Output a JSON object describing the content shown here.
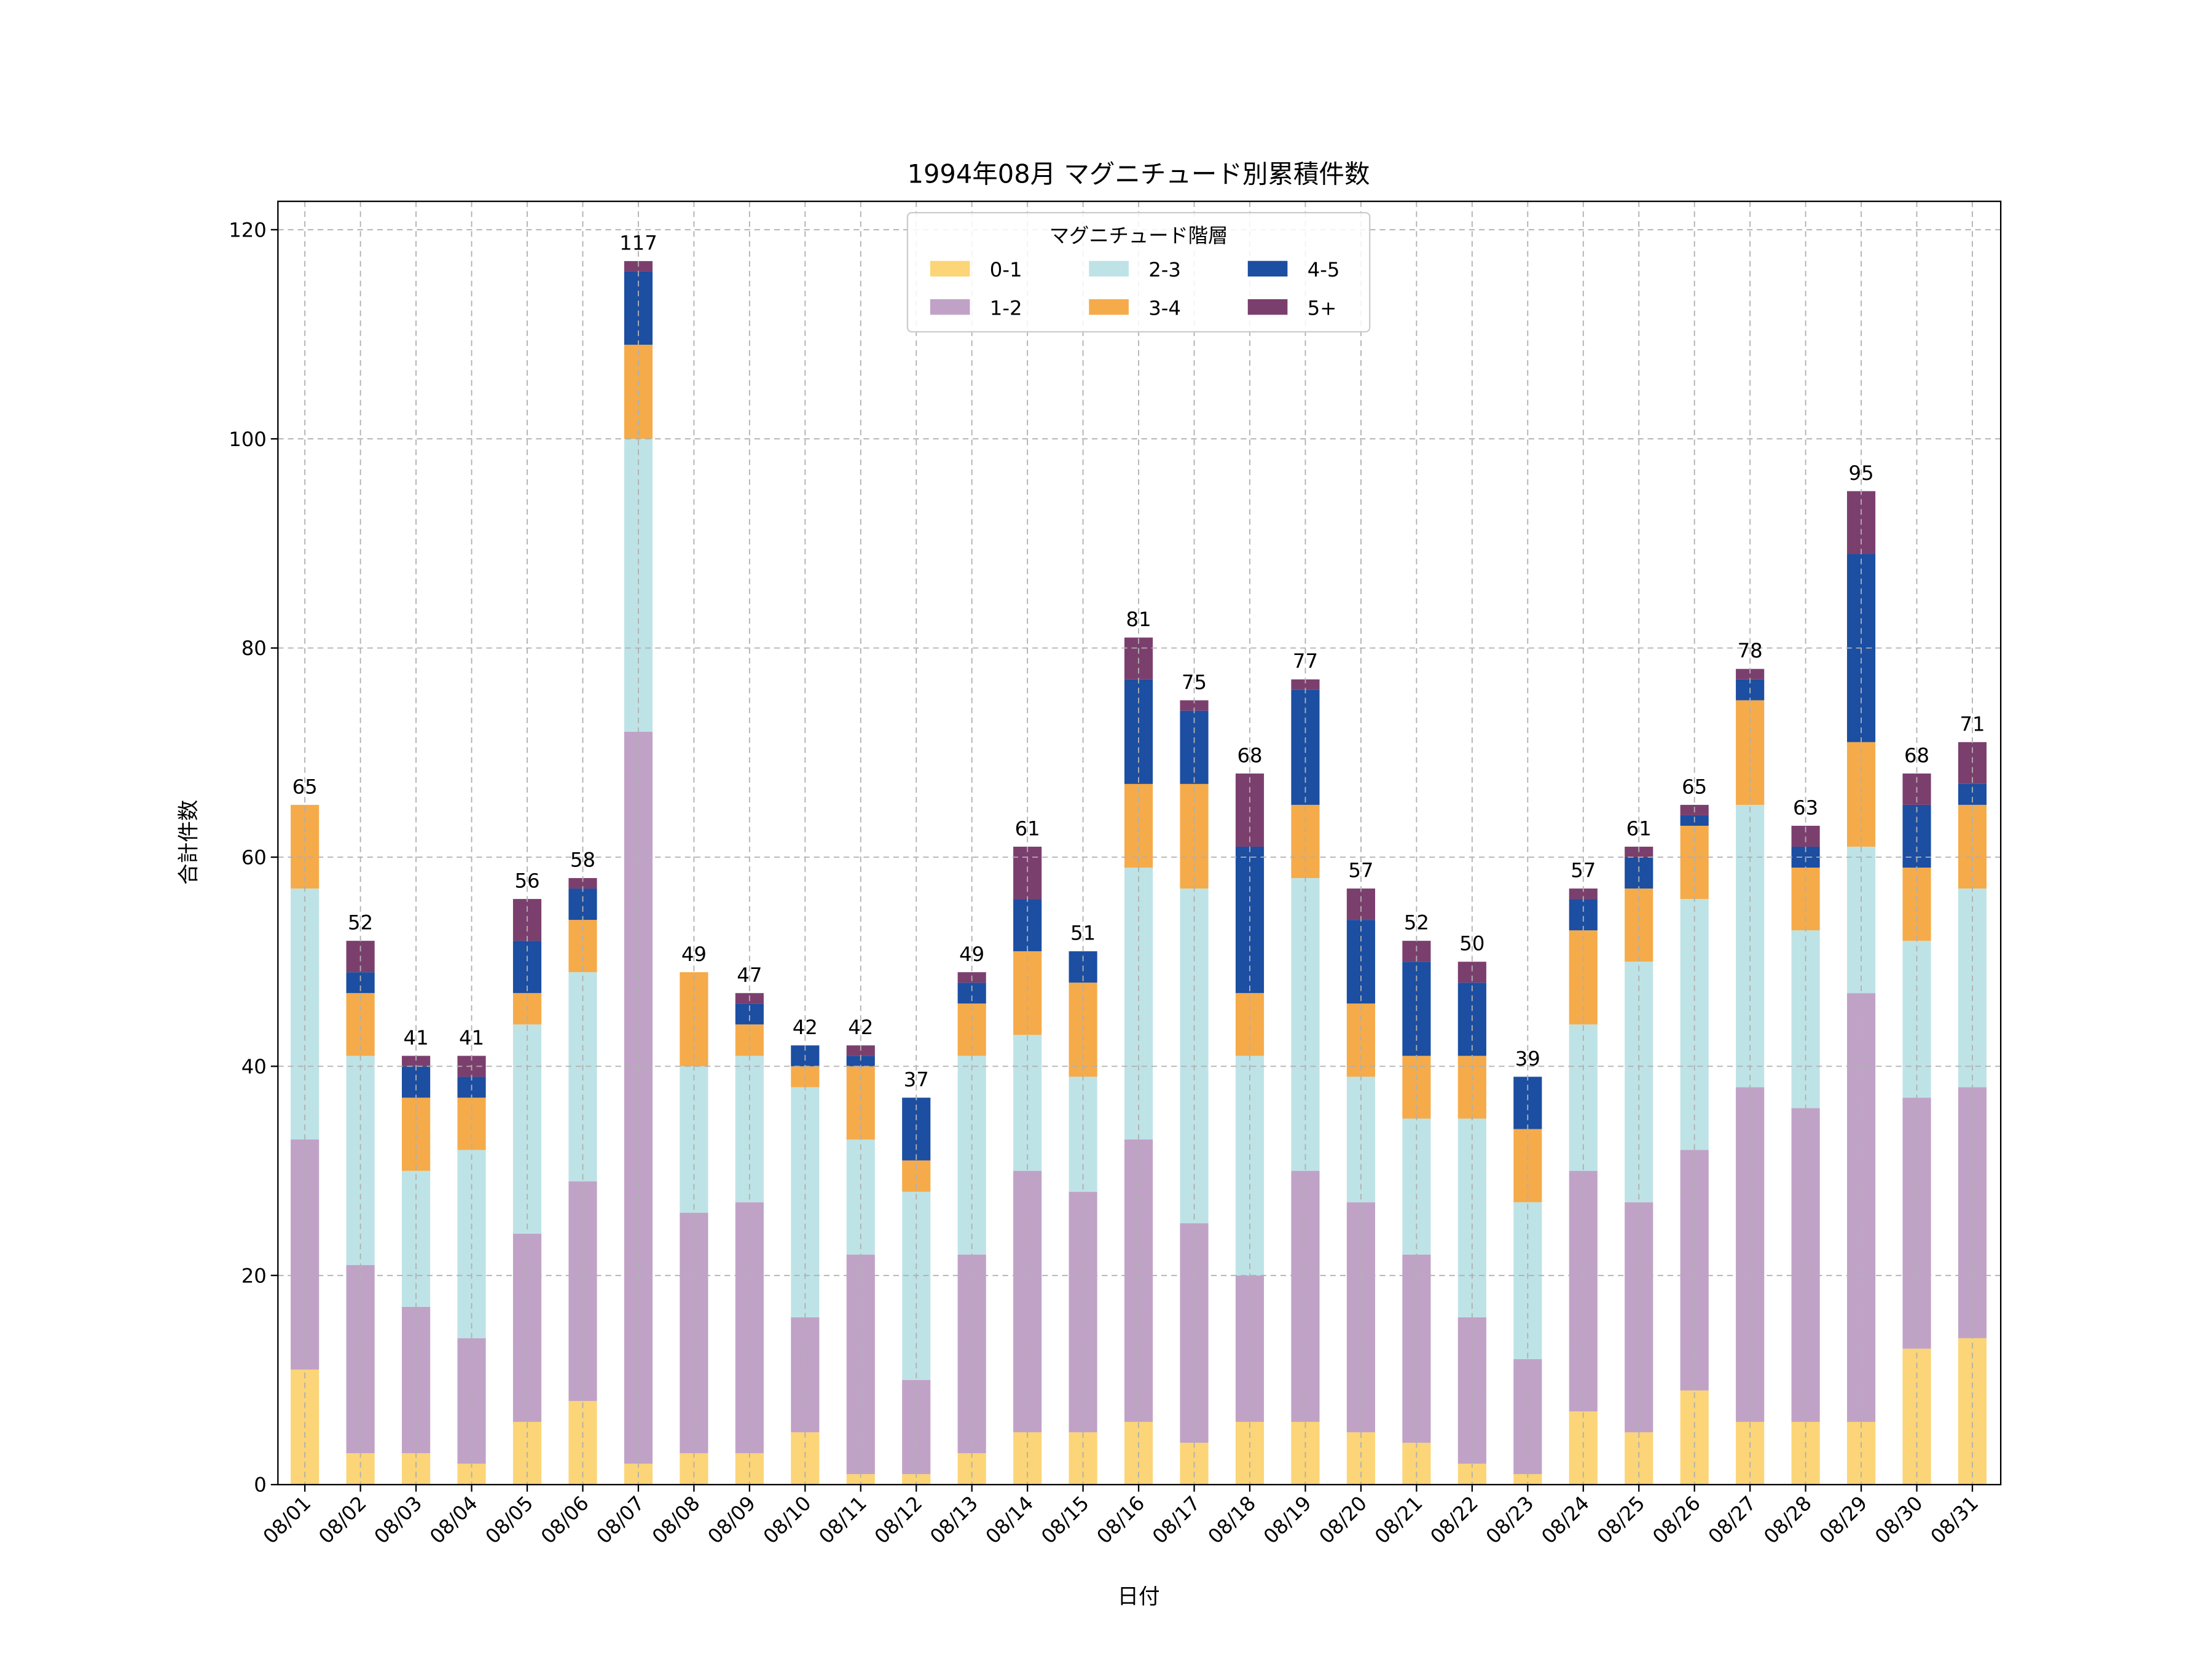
{
  "chart_data": {
    "type": "bar",
    "stacked": true,
    "title": "1994年08月 マグニチュード別累積件数",
    "xlabel": "日付",
    "ylabel": "合計件数",
    "ylim": [
      0,
      120
    ],
    "yticks": [
      0,
      20,
      40,
      60,
      80,
      100,
      120
    ],
    "grid": true,
    "legend": {
      "title": "マグニチュード階層",
      "placement": "top-center",
      "columns": 3
    },
    "categories": [
      "08/01",
      "08/02",
      "08/03",
      "08/04",
      "08/05",
      "08/06",
      "08/07",
      "08/08",
      "08/09",
      "08/10",
      "08/11",
      "08/12",
      "08/13",
      "08/14",
      "08/15",
      "08/16",
      "08/17",
      "08/18",
      "08/19",
      "08/20",
      "08/21",
      "08/22",
      "08/23",
      "08/24",
      "08/25",
      "08/26",
      "08/27",
      "08/28",
      "08/29",
      "08/30",
      "08/31"
    ],
    "series": [
      {
        "name": "0-1",
        "color": "#fbd577",
        "values": [
          11,
          3,
          3,
          2,
          6,
          8,
          2,
          3,
          3,
          5,
          1,
          1,
          3,
          5,
          5,
          6,
          4,
          6,
          6,
          5,
          4,
          2,
          1,
          7,
          5,
          9,
          6,
          6,
          6,
          13,
          14
        ]
      },
      {
        "name": "1-2",
        "color": "#c0a2c7",
        "values": [
          22,
          18,
          14,
          12,
          18,
          21,
          70,
          23,
          24,
          11,
          21,
          9,
          19,
          25,
          23,
          27,
          21,
          14,
          24,
          22,
          18,
          14,
          11,
          23,
          22,
          23,
          32,
          30,
          41,
          24,
          24
        ]
      },
      {
        "name": "2-3",
        "color": "#bee3e6",
        "values": [
          24,
          20,
          13,
          18,
          20,
          20,
          28,
          14,
          14,
          22,
          11,
          18,
          19,
          13,
          11,
          26,
          32,
          21,
          28,
          12,
          13,
          19,
          15,
          14,
          23,
          24,
          27,
          17,
          14,
          15,
          19
        ]
      },
      {
        "name": "3-4",
        "color": "#f5ab4a",
        "values": [
          8,
          6,
          7,
          5,
          3,
          5,
          9,
          9,
          3,
          2,
          7,
          3,
          5,
          8,
          9,
          8,
          10,
          6,
          7,
          7,
          6,
          6,
          7,
          9,
          7,
          7,
          10,
          6,
          10,
          7,
          8
        ]
      },
      {
        "name": "4-5",
        "color": "#1c4ea1",
        "values": [
          0,
          2,
          3,
          2,
          5,
          3,
          7,
          0,
          2,
          2,
          1,
          6,
          2,
          5,
          3,
          10,
          7,
          14,
          11,
          8,
          9,
          7,
          5,
          3,
          3,
          1,
          2,
          2,
          18,
          6,
          2
        ]
      },
      {
        "name": "5+",
        "color": "#7b3f6e",
        "values": [
          0,
          3,
          1,
          2,
          4,
          1,
          1,
          0,
          1,
          0,
          1,
          0,
          1,
          5,
          0,
          4,
          1,
          7,
          1,
          3,
          2,
          2,
          0,
          1,
          1,
          1,
          1,
          2,
          6,
          3,
          4
        ]
      }
    ],
    "totals": [
      65,
      52,
      41,
      41,
      56,
      58,
      117,
      49,
      47,
      42,
      42,
      37,
      49,
      61,
      51,
      81,
      75,
      68,
      77,
      57,
      52,
      50,
      39,
      57,
      61,
      65,
      78,
      63,
      95,
      68,
      71
    ]
  }
}
